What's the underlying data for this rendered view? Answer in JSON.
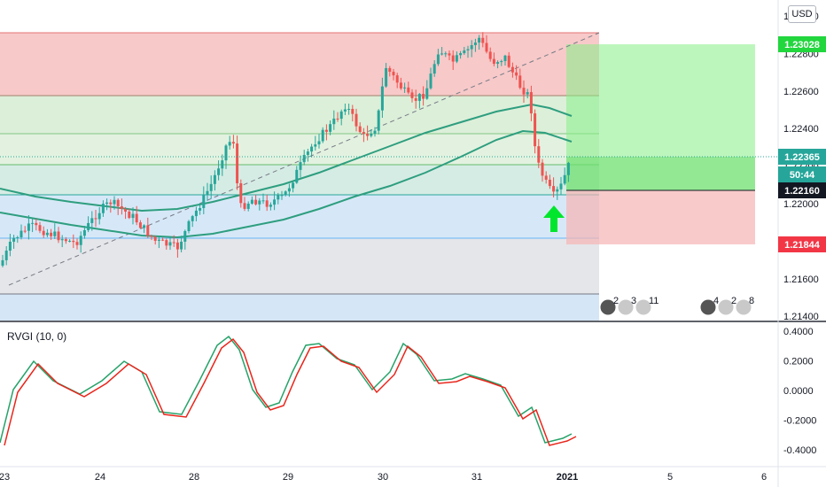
{
  "currency_badge": "USD",
  "indicator": {
    "label": "RVGI (10, 0)"
  },
  "price_axis_ticks": [
    "1.23000",
    "1.22800",
    "1.22600",
    "1.22400",
    "1.22200",
    "1.22000",
    "1.21800",
    "1.21600",
    "1.21400"
  ],
  "price_labels": {
    "target": {
      "text": "1.23028",
      "color": "#22d63e"
    },
    "current": {
      "text": "1.22365",
      "color": "#26a69a"
    },
    "countdown": {
      "text": "50:44",
      "color": "#26a69a"
    },
    "entry": {
      "text": "1.22160",
      "color": "#131722"
    },
    "stop": {
      "text": "1.21844",
      "color": "#f23645"
    }
  },
  "indicator_axis_ticks": [
    "0.4000",
    "0.2000",
    "0.0000",
    "-0.2000",
    "-0.4000"
  ],
  "time_axis": [
    "23",
    "24",
    "28",
    "29",
    "30",
    "31",
    "2021",
    "5",
    "6"
  ],
  "events": [
    {
      "name": "event-group-1",
      "counts": [
        "2",
        "3",
        "11"
      ]
    },
    {
      "name": "event-group-2",
      "counts": [
        "4",
        "2",
        "8"
      ]
    }
  ],
  "chart_data": {
    "type": "candlestick",
    "symbol_currency": "USD",
    "price_range": [
      1.2138,
      1.2318
    ],
    "indicator_range": [
      -0.44,
      0.44
    ],
    "fib_levels": [
      1.2304,
      1.2272,
      1.2248,
      1.2224,
      1.2216,
      1.2192,
      1.216
    ],
    "moving_averages": 2,
    "position": {
      "entry": 1.2216,
      "target": 1.23028,
      "stop": 1.21844,
      "current": 1.22365
    }
  }
}
